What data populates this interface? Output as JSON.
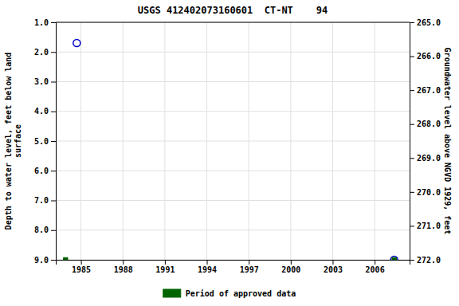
{
  "chart_data": {
    "type": "scatter",
    "title": "USGS 412402073160601  CT-NT    94",
    "ylabel": "Depth to water level, feet below land\nsurface",
    "y2label": "Groundwater level above NGVD 1929, feet",
    "xlim": [
      1983.2,
      2008.5
    ],
    "xticks": [
      1985,
      1988,
      1991,
      1994,
      1997,
      2000,
      2003,
      2006
    ],
    "ylim": [
      9.0,
      1.0
    ],
    "yticks": [
      {
        "value": 1.0,
        "label": "1.0"
      },
      {
        "value": 2.0,
        "label": "2.0"
      },
      {
        "value": 3.0,
        "label": "3.0"
      },
      {
        "value": 4.0,
        "label": "4.0"
      },
      {
        "value": 5.0,
        "label": "5.0"
      },
      {
        "value": 6.0,
        "label": "6.0"
      },
      {
        "value": 7.0,
        "label": "7.0"
      },
      {
        "value": 8.0,
        "label": "8.0"
      },
      {
        "value": 9.0,
        "label": "9.0"
      }
    ],
    "y2lim": [
      272.0,
      265.0
    ],
    "y2ticks": [
      {
        "value": 272.0,
        "label": "272.0"
      },
      {
        "value": 271.0,
        "label": "271.0"
      },
      {
        "value": 270.0,
        "label": "270.0"
      },
      {
        "value": 269.0,
        "label": "269.0"
      },
      {
        "value": 268.0,
        "label": "268.0"
      },
      {
        "value": 267.0,
        "label": "267.0"
      },
      {
        "value": 266.0,
        "label": "266.0"
      },
      {
        "value": 265.0,
        "label": "265.0"
      }
    ],
    "grid": true,
    "legend": "bottom",
    "series": [
      {
        "x": [
          1984.7,
          2007.4
        ],
        "values": [
          1.7,
          9.0
        ],
        "color": "#0000cc",
        "marker": "circle"
      },
      {
        "name": "Period of approved data",
        "x": [
          1983.9,
          2007.4
        ],
        "values": [
          9.0,
          9.0
        ],
        "color": "#006400",
        "marker": "square"
      }
    ]
  }
}
